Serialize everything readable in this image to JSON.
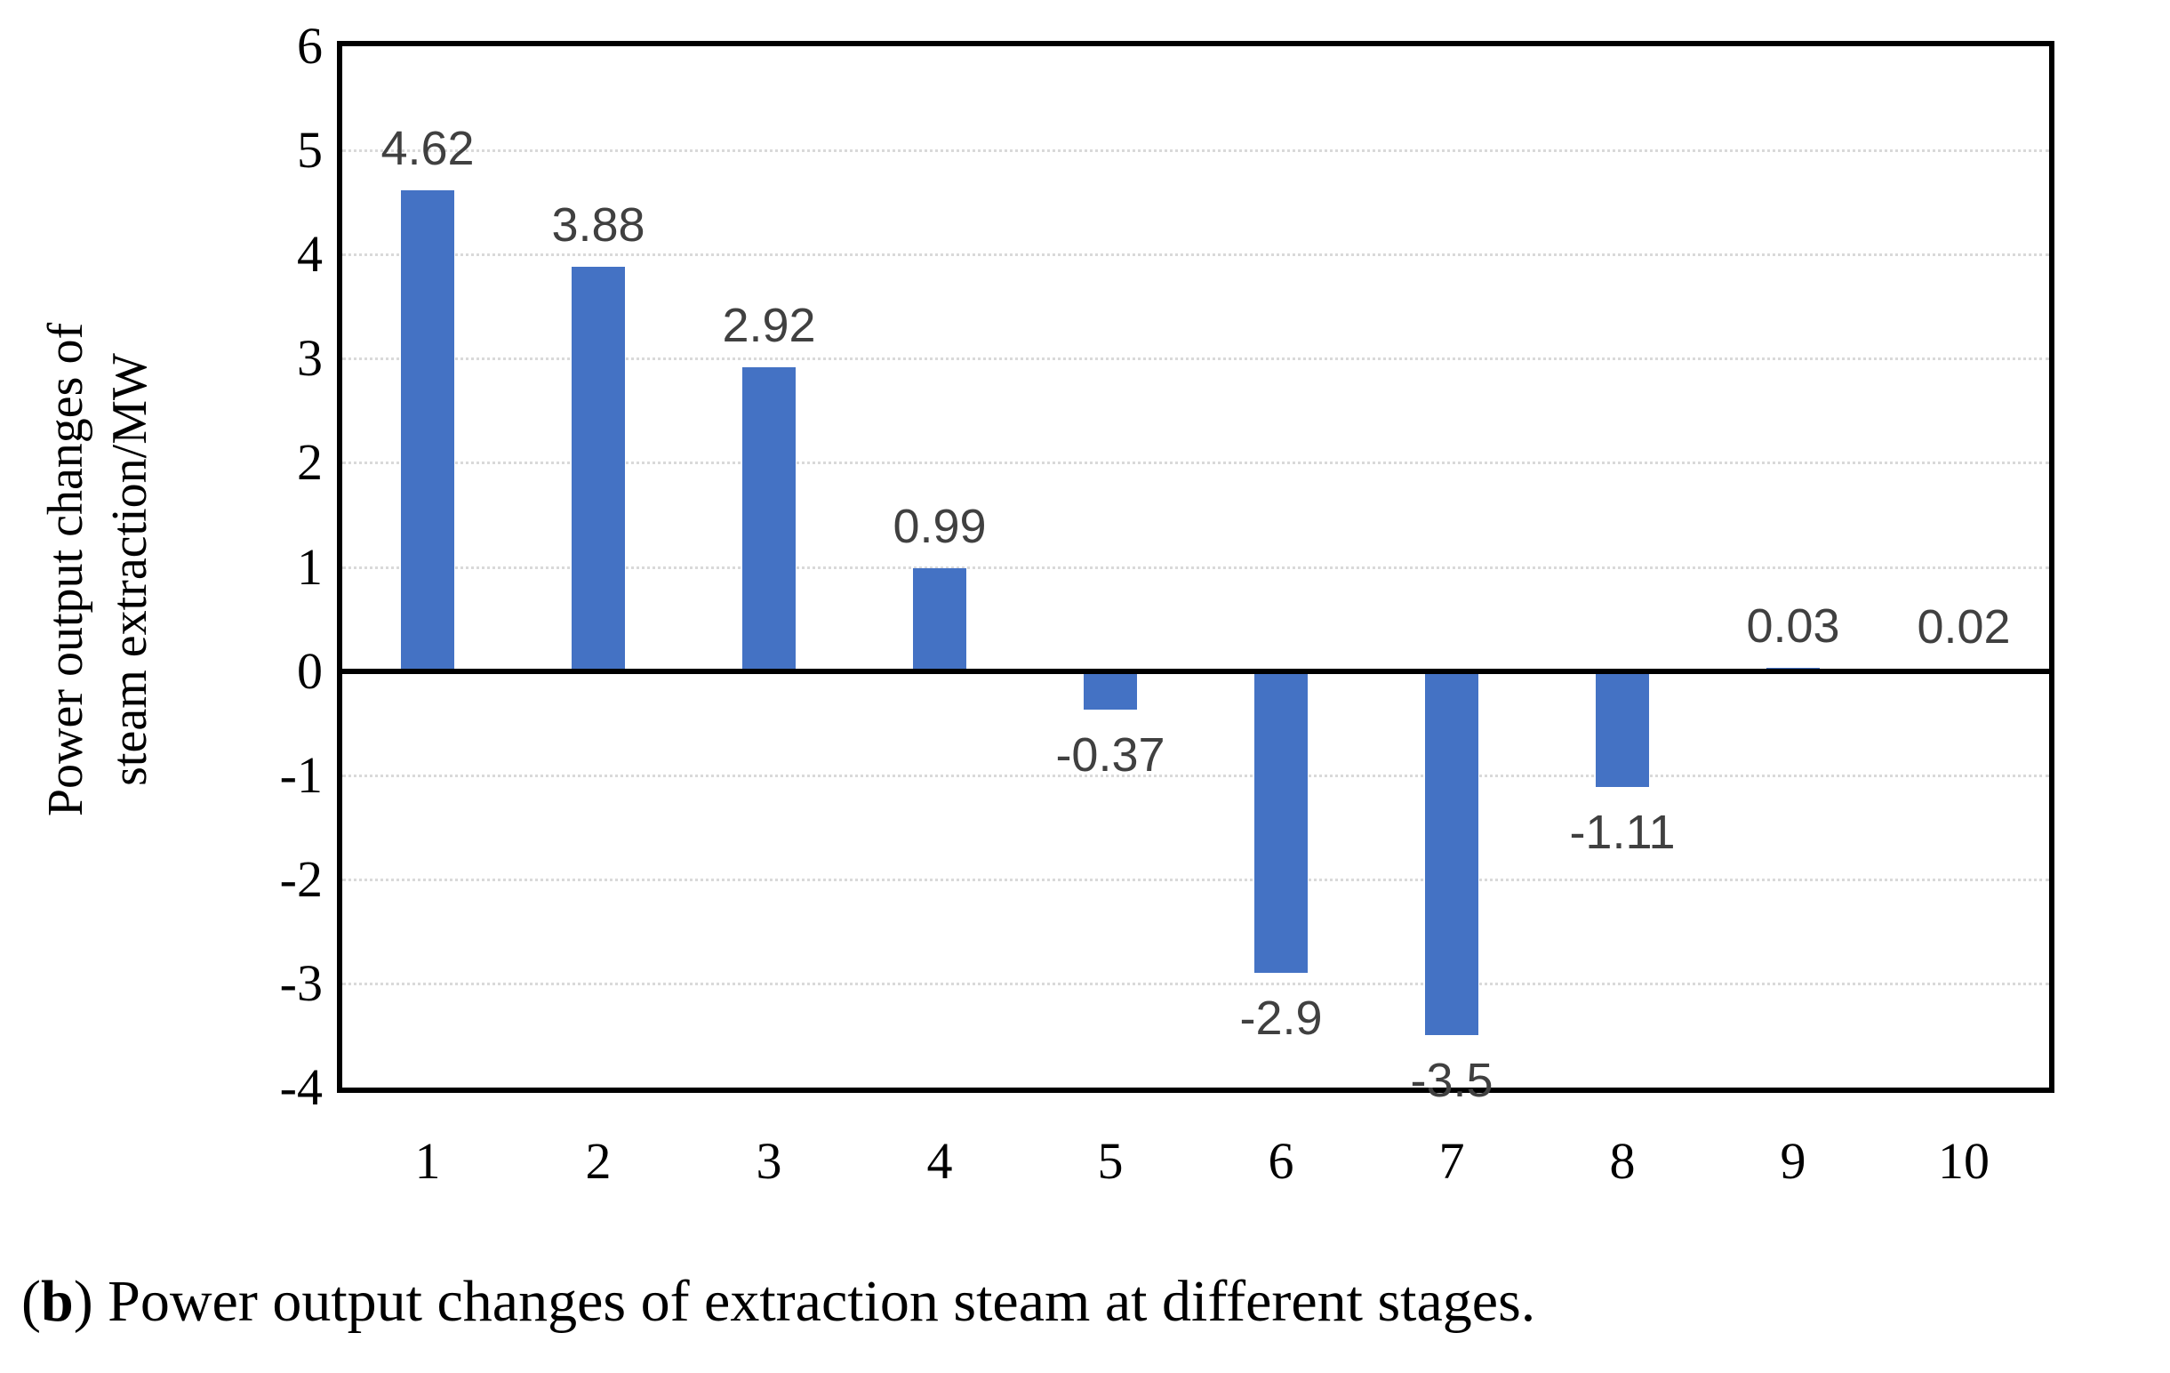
{
  "chart_data": {
    "type": "bar",
    "title": "",
    "xlabel": "",
    "ylabel_line1": "Power output changes of",
    "ylabel_line2": "steam extraction/MW",
    "categories": [
      "1",
      "2",
      "3",
      "4",
      "5",
      "6",
      "7",
      "8",
      "9",
      "10"
    ],
    "values": [
      4.62,
      3.88,
      2.92,
      0.99,
      -0.37,
      -2.9,
      -3.5,
      -1.11,
      0.03,
      0.02
    ],
    "data_labels": [
      "4.62",
      "3.88",
      "2.92",
      "0.99",
      "-0.37",
      "-2.9",
      "-3.5",
      "-1.11",
      "0.03",
      "0.02"
    ],
    "yticks": [
      "6",
      "5",
      "4",
      "3",
      "2",
      "1",
      "0",
      "-1",
      "-2",
      "-3",
      "-4"
    ],
    "ylim": [
      -4,
      6
    ],
    "grid": "horizontal-dotted",
    "legend_position": "none",
    "bar_color": "#4472C4",
    "data_label_color": "#404040",
    "gridline_color": "#D9D9D9",
    "axis_color": "#000000"
  },
  "caption": {
    "open": "(",
    "bold": "b",
    "rest": ") Power output changes of extraction steam at different stages."
  }
}
